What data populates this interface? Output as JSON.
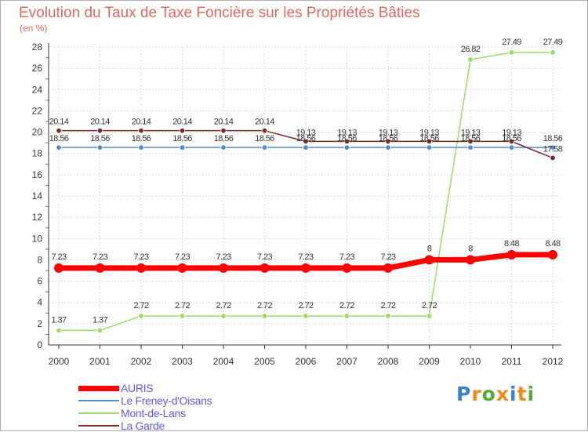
{
  "chart_data": {
    "type": "line",
    "title": "Evolution du Taux de Taxe Foncière sur les Propriétés Bâties",
    "ylabel": "(en %)",
    "xlabel": "",
    "categories": [
      "2000",
      "2001",
      "2002",
      "2003",
      "2004",
      "2005",
      "2006",
      "2007",
      "2008",
      "2009",
      "2010",
      "2011",
      "2012"
    ],
    "yticks": [
      0,
      2,
      4,
      6,
      8,
      10,
      12,
      14,
      16,
      18,
      20,
      22,
      24,
      26,
      28
    ],
    "ylim": [
      0,
      28
    ],
    "grid": true,
    "legend_position": "bottom-left",
    "series": [
      {
        "name": "AURIS",
        "color": "#ff0000",
        "values": [
          7.23,
          7.23,
          7.23,
          7.23,
          7.23,
          7.23,
          7.23,
          7.23,
          7.23,
          8,
          8,
          8.48,
          8.48
        ],
        "labels": [
          "7.23",
          "7.23",
          "7.23",
          "7.23",
          "7.23",
          "7.23",
          "7.23",
          "7.23",
          "7.23",
          "8",
          "8",
          "8.48",
          "8.48"
        ]
      },
      {
        "name": "Le Freney-d'Oisans",
        "color": "#4f8cc9",
        "values": [
          18.56,
          18.56,
          18.56,
          18.56,
          18.56,
          18.56,
          18.56,
          18.56,
          18.56,
          18.56,
          18.56,
          18.56,
          18.56
        ],
        "labels": [
          "18.56",
          "18.56",
          "18.56",
          "18.56",
          "18.56",
          "18.56",
          "18.56",
          "18.56",
          "18.56",
          "18.56",
          "18.56",
          "18.56",
          "18.56"
        ]
      },
      {
        "name": "Mont-de-Lans",
        "color": "#99dd66",
        "values": [
          1.37,
          1.37,
          2.72,
          2.72,
          2.72,
          2.72,
          2.72,
          2.72,
          2.72,
          2.72,
          26.82,
          27.49,
          27.49
        ],
        "labels": [
          "1.37",
          "1.37",
          "2.72",
          "2.72",
          "2.72",
          "2.72",
          "2.72",
          "2.72",
          "2.72",
          "2.72",
          "26.82",
          "27.49",
          "27.49"
        ]
      },
      {
        "name": "La Garde",
        "color": "#7a2a2a",
        "values": [
          20.14,
          20.14,
          20.14,
          20.14,
          20.14,
          20.14,
          19.13,
          19.13,
          19.13,
          19.13,
          19.13,
          19.13,
          17.58
        ],
        "labels": [
          "20.14",
          "20.14",
          "20.14",
          "20.14",
          "20.14",
          "20.14",
          "19.13",
          "19.13",
          "19.13",
          "19.13",
          "19.13",
          "19.13",
          "17.58"
        ]
      }
    ]
  },
  "logo": {
    "text": "Proxiti",
    "colors": [
      "#3a7fd0",
      "#ee8a1a",
      "#55aa33",
      "#ee8a1a",
      "#3a7fd0",
      "#ee8a1a",
      "#55aa33"
    ]
  }
}
